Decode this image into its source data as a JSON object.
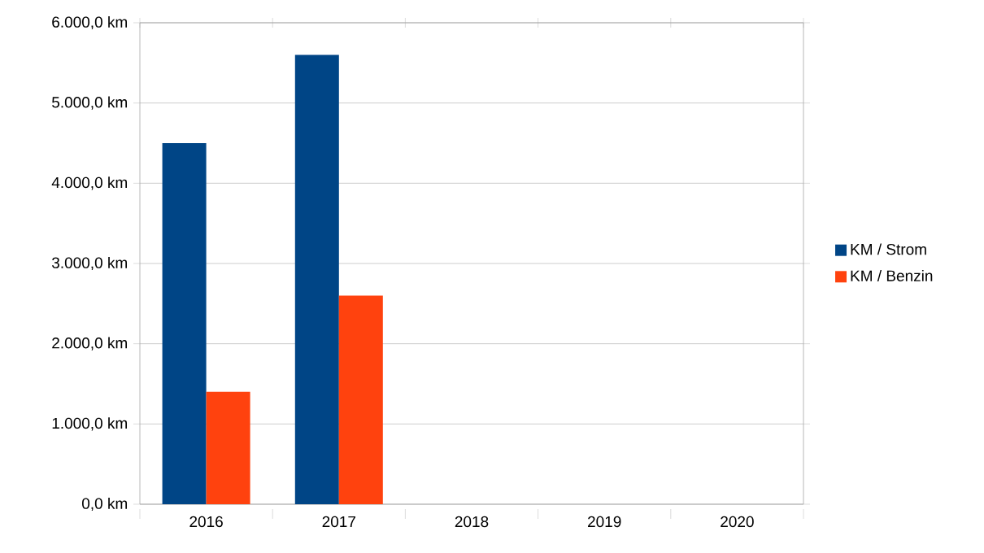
{
  "chart_data": {
    "type": "bar",
    "categories": [
      "2016",
      "2017",
      "2018",
      "2019",
      "2020"
    ],
    "series": [
      {
        "name": "KM / Strom",
        "color": "#004586",
        "values": [
          4500,
          5600,
          null,
          null,
          null
        ]
      },
      {
        "name": "KM / Benzin",
        "color": "#ff420e",
        "values": [
          1400,
          2600,
          null,
          null,
          null
        ]
      }
    ],
    "ylim": [
      0,
      6000
    ],
    "yticks": [
      {
        "value": 0,
        "label": "0,0 km"
      },
      {
        "value": 1000,
        "label": "1.000,0 km"
      },
      {
        "value": 2000,
        "label": "2.000,0 km"
      },
      {
        "value": 3000,
        "label": "3.000,0 km"
      },
      {
        "value": 4000,
        "label": "4.000,0 km"
      },
      {
        "value": 5000,
        "label": "5.000,0 km"
      },
      {
        "value": 6000,
        "label": "6.000,0 km"
      }
    ],
    "grid": "y",
    "legend": "right"
  }
}
